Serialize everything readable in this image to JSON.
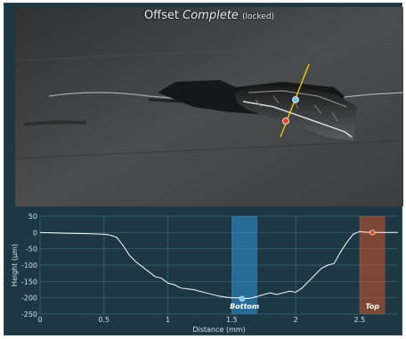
{
  "image_view": {
    "title_prefix": "Offset",
    "title_emphasis": "Complete",
    "title_suffix": "(locked)"
  },
  "profile": {
    "markers": {
      "bottom_label": "Bottom",
      "top_label": "Top",
      "bottom_color": "#2f8fcf",
      "top_color": "#c0532e"
    },
    "line_color": "#ffffff",
    "grid_color": "#3d6a7a"
  },
  "chart_data": {
    "type": "line",
    "xlabel": "Distance (mm)",
    "ylabel": "Height (µm)",
    "xlim": [
      0,
      2.8
    ],
    "ylim": [
      -250,
      50
    ],
    "x_ticks": [
      0,
      0.5,
      1,
      1.5,
      2,
      2.5
    ],
    "y_ticks": [
      50,
      0,
      -50,
      -100,
      -150,
      -200,
      -250
    ],
    "grid": true,
    "series": [
      {
        "x": [
          0,
          0.1,
          0.2,
          0.3,
          0.4,
          0.5,
          0.55,
          0.6,
          0.65,
          0.7,
          0.75,
          0.8,
          0.85,
          0.9,
          0.95,
          1.0,
          1.05,
          1.1,
          1.2,
          1.3,
          1.4,
          1.45,
          1.5,
          1.55,
          1.6,
          1.65,
          1.7,
          1.75,
          1.8,
          1.85,
          1.9,
          1.95,
          2.0,
          2.05,
          2.1,
          2.15,
          2.2,
          2.25,
          2.3,
          2.35,
          2.4,
          2.45,
          2.5,
          2.55,
          2.6,
          2.7,
          2.8
        ],
        "y": [
          0,
          -1,
          -2,
          -3,
          -4,
          -5,
          -8,
          -15,
          -40,
          -70,
          -90,
          -105,
          -120,
          -135,
          -140,
          -155,
          -160,
          -170,
          -175,
          -185,
          -195,
          -198,
          -200,
          -200,
          -203,
          -201,
          -196,
          -190,
          -185,
          -190,
          -185,
          -180,
          -183,
          -170,
          -150,
          -130,
          -110,
          -100,
          -95,
          -60,
          -30,
          -5,
          3,
          1,
          0,
          0,
          0
        ]
      }
    ],
    "bands": [
      {
        "label": "Bottom",
        "x0": 1.5,
        "x1": 1.7,
        "marker_x": 1.58,
        "marker_y": -203
      },
      {
        "label": "Top",
        "x0": 2.5,
        "x1": 2.7,
        "marker_x": 2.6,
        "marker_y": 0
      }
    ]
  }
}
